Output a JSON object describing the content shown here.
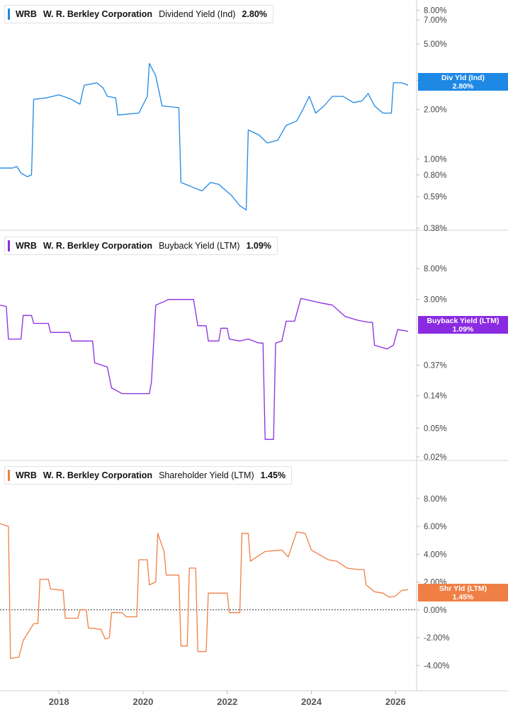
{
  "chart_data": [
    {
      "type": "line",
      "title": {
        "ticker": "WRB",
        "company": "W. R. Berkley Corporation",
        "metric": "Dividend Yield (Ind)",
        "value": "2.80%"
      },
      "badge": {
        "line1": "Div Yld (Ind)",
        "line2": "2.80%"
      },
      "color": "#1e88e5",
      "scale": "log",
      "ylim": [
        0.38,
        8.7
      ],
      "yticks": [
        {
          "v": 8.0,
          "label": "8.00%"
        },
        {
          "v": 7.0,
          "label": "7.00%"
        },
        {
          "v": 5.0,
          "label": "5.00%"
        },
        {
          "v": 3.0,
          "label": "3.00%"
        },
        {
          "v": 2.0,
          "label": "2.00%"
        },
        {
          "v": 1.0,
          "label": "1.00%"
        },
        {
          "v": 0.8,
          "label": "0.80%"
        },
        {
          "v": 0.59,
          "label": "0.59%"
        },
        {
          "v": 0.38,
          "label": "0.38%"
        }
      ],
      "points": [
        [
          2016.6,
          0.88
        ],
        [
          2016.9,
          0.88
        ],
        [
          2017.0,
          0.9
        ],
        [
          2017.1,
          0.82
        ],
        [
          2017.25,
          0.78
        ],
        [
          2017.35,
          0.8
        ],
        [
          2017.4,
          2.3
        ],
        [
          2017.7,
          2.35
        ],
        [
          2018.0,
          2.45
        ],
        [
          2018.3,
          2.3
        ],
        [
          2018.5,
          2.15
        ],
        [
          2018.6,
          2.8
        ],
        [
          2018.9,
          2.9
        ],
        [
          2019.05,
          2.7
        ],
        [
          2019.15,
          2.4
        ],
        [
          2019.35,
          2.35
        ],
        [
          2019.4,
          1.85
        ],
        [
          2019.9,
          1.9
        ],
        [
          2020.1,
          2.4
        ],
        [
          2020.15,
          3.8
        ],
        [
          2020.3,
          3.2
        ],
        [
          2020.45,
          2.1
        ],
        [
          2020.85,
          2.05
        ],
        [
          2020.9,
          0.72
        ],
        [
          2021.2,
          0.67
        ],
        [
          2021.4,
          0.64
        ],
        [
          2021.6,
          0.72
        ],
        [
          2021.8,
          0.7
        ],
        [
          2022.1,
          0.6
        ],
        [
          2022.3,
          0.52
        ],
        [
          2022.45,
          0.49
        ],
        [
          2022.5,
          1.5
        ],
        [
          2022.75,
          1.4
        ],
        [
          2022.95,
          1.25
        ],
        [
          2023.2,
          1.3
        ],
        [
          2023.4,
          1.6
        ],
        [
          2023.65,
          1.7
        ],
        [
          2023.8,
          2.0
        ],
        [
          2023.95,
          2.4
        ],
        [
          2024.1,
          1.9
        ],
        [
          2024.3,
          2.1
        ],
        [
          2024.5,
          2.4
        ],
        [
          2024.75,
          2.4
        ],
        [
          2025.0,
          2.2
        ],
        [
          2025.2,
          2.25
        ],
        [
          2025.35,
          2.5
        ],
        [
          2025.5,
          2.1
        ],
        [
          2025.7,
          1.9
        ],
        [
          2025.9,
          1.9
        ],
        [
          2025.95,
          2.9
        ],
        [
          2026.15,
          2.9
        ],
        [
          2026.3,
          2.8
        ]
      ]
    },
    {
      "type": "line",
      "title": {
        "ticker": "WRB",
        "company": "W. R. Berkley Corporation",
        "metric": "Buyback Yield (LTM)",
        "value": "1.09%"
      },
      "badge": {
        "line1": "Buyback Yield (LTM)",
        "line2": "1.09%"
      },
      "color": "#8a2be2",
      "scale": "log",
      "ylim": [
        0.02,
        11
      ],
      "yticks": [
        {
          "v": 8.0,
          "label": "8.00%"
        },
        {
          "v": 3.0,
          "label": "3.00%"
        },
        {
          "v": 0.37,
          "label": "0.37%"
        },
        {
          "v": 0.14,
          "label": "0.14%"
        },
        {
          "v": 0.05,
          "label": "0.05%"
        },
        {
          "v": 0.02,
          "label": "0.02%"
        }
      ],
      "points": [
        [
          2016.6,
          2.5
        ],
        [
          2016.75,
          2.4
        ],
        [
          2016.8,
          0.85
        ],
        [
          2017.1,
          0.85
        ],
        [
          2017.15,
          1.8
        ],
        [
          2017.35,
          1.8
        ],
        [
          2017.4,
          1.4
        ],
        [
          2017.75,
          1.4
        ],
        [
          2017.8,
          1.05
        ],
        [
          2018.25,
          1.05
        ],
        [
          2018.3,
          0.8
        ],
        [
          2018.5,
          0.8
        ],
        [
          2018.8,
          0.8
        ],
        [
          2018.85,
          0.4
        ],
        [
          2019.15,
          0.35
        ],
        [
          2019.25,
          0.18
        ],
        [
          2019.5,
          0.15
        ],
        [
          2019.8,
          0.15
        ],
        [
          2020.15,
          0.15
        ],
        [
          2020.2,
          0.22
        ],
        [
          2020.3,
          2.5
        ],
        [
          2020.5,
          2.8
        ],
        [
          2020.6,
          3.0
        ],
        [
          2021.2,
          3.0
        ],
        [
          2021.3,
          1.3
        ],
        [
          2021.5,
          1.3
        ],
        [
          2021.55,
          0.8
        ],
        [
          2021.8,
          0.8
        ],
        [
          2021.85,
          1.2
        ],
        [
          2022.0,
          1.2
        ],
        [
          2022.05,
          0.85
        ],
        [
          2022.3,
          0.8
        ],
        [
          2022.5,
          0.85
        ],
        [
          2022.75,
          0.75
        ],
        [
          2022.85,
          0.75
        ],
        [
          2022.9,
          0.035
        ],
        [
          2023.1,
          0.035
        ],
        [
          2023.15,
          0.75
        ],
        [
          2023.3,
          0.8
        ],
        [
          2023.4,
          1.5
        ],
        [
          2023.6,
          1.5
        ],
        [
          2023.75,
          3.1
        ],
        [
          2024.2,
          2.7
        ],
        [
          2024.5,
          2.5
        ],
        [
          2024.8,
          1.75
        ],
        [
          2025.1,
          1.55
        ],
        [
          2025.35,
          1.45
        ],
        [
          2025.45,
          1.45
        ],
        [
          2025.5,
          0.7
        ],
        [
          2025.8,
          0.62
        ],
        [
          2025.95,
          0.7
        ],
        [
          2026.05,
          1.15
        ],
        [
          2026.3,
          1.09
        ]
      ]
    },
    {
      "type": "line",
      "title": {
        "ticker": "WRB",
        "company": "W. R. Berkley Corporation",
        "metric": "Shareholder Yield (LTM)",
        "value": "1.45%"
      },
      "badge": {
        "line1": "Shr Yld (LTM)",
        "line2": "1.45%"
      },
      "color": "#f07f45",
      "scale": "linear",
      "ylim": [
        -4.8,
        8.6
      ],
      "zero_line": true,
      "yticks": [
        {
          "v": 8.0,
          "label": "8.00%"
        },
        {
          "v": 6.0,
          "label": "6.00%"
        },
        {
          "v": 4.0,
          "label": "4.00%"
        },
        {
          "v": 2.0,
          "label": "2.00%"
        },
        {
          "v": 0.0,
          "label": "0.00%"
        },
        {
          "v": -2.0,
          "label": "-2.00%"
        },
        {
          "v": -4.0,
          "label": "-4.00%"
        }
      ],
      "points": [
        [
          2016.6,
          6.2
        ],
        [
          2016.8,
          6.0
        ],
        [
          2016.85,
          -3.5
        ],
        [
          2017.05,
          -3.4
        ],
        [
          2017.15,
          -2.2
        ],
        [
          2017.4,
          -1.0
        ],
        [
          2017.5,
          -1.0
        ],
        [
          2017.55,
          2.2
        ],
        [
          2017.75,
          2.2
        ],
        [
          2017.8,
          1.5
        ],
        [
          2018.1,
          1.4
        ],
        [
          2018.15,
          -0.6
        ],
        [
          2018.45,
          -0.6
        ],
        [
          2018.5,
          0.0
        ],
        [
          2018.65,
          0.0
        ],
        [
          2018.7,
          -1.3
        ],
        [
          2019.0,
          -1.4
        ],
        [
          2019.1,
          -2.1
        ],
        [
          2019.2,
          -2.0
        ],
        [
          2019.25,
          -0.2
        ],
        [
          2019.5,
          -0.2
        ],
        [
          2019.6,
          -0.5
        ],
        [
          2019.85,
          -0.5
        ],
        [
          2019.9,
          3.6
        ],
        [
          2020.1,
          3.6
        ],
        [
          2020.15,
          1.8
        ],
        [
          2020.3,
          2.0
        ],
        [
          2020.35,
          5.5
        ],
        [
          2020.5,
          4.2
        ],
        [
          2020.55,
          2.5
        ],
        [
          2020.85,
          2.5
        ],
        [
          2020.9,
          -2.6
        ],
        [
          2021.05,
          -2.6
        ],
        [
          2021.1,
          3.0
        ],
        [
          2021.25,
          3.0
        ],
        [
          2021.3,
          -3.0
        ],
        [
          2021.5,
          -3.0
        ],
        [
          2021.55,
          1.2
        ],
        [
          2021.8,
          1.2
        ],
        [
          2022.0,
          1.2
        ],
        [
          2022.05,
          -0.2
        ],
        [
          2022.3,
          -0.2
        ],
        [
          2022.35,
          5.5
        ],
        [
          2022.5,
          5.5
        ],
        [
          2022.55,
          3.5
        ],
        [
          2022.8,
          4.0
        ],
        [
          2022.9,
          4.2
        ],
        [
          2023.3,
          4.3
        ],
        [
          2023.45,
          3.8
        ],
        [
          2023.65,
          5.6
        ],
        [
          2023.85,
          5.5
        ],
        [
          2024.0,
          4.3
        ],
        [
          2024.4,
          3.6
        ],
        [
          2024.6,
          3.5
        ],
        [
          2024.85,
          3.0
        ],
        [
          2025.1,
          2.9
        ],
        [
          2025.25,
          2.9
        ],
        [
          2025.3,
          1.8
        ],
        [
          2025.5,
          1.3
        ],
        [
          2025.7,
          1.2
        ],
        [
          2025.85,
          0.9
        ],
        [
          2026.0,
          1.0
        ],
        [
          2026.15,
          1.4
        ],
        [
          2026.3,
          1.45
        ]
      ]
    }
  ],
  "x_axis": {
    "xlim": [
      2016.6,
      2026.5
    ],
    "ticks": [
      {
        "v": 2018,
        "label": "2018"
      },
      {
        "v": 2020,
        "label": "2020"
      },
      {
        "v": 2022,
        "label": "2022"
      },
      {
        "v": 2024,
        "label": "2024"
      },
      {
        "v": 2026,
        "label": "2026"
      }
    ]
  }
}
